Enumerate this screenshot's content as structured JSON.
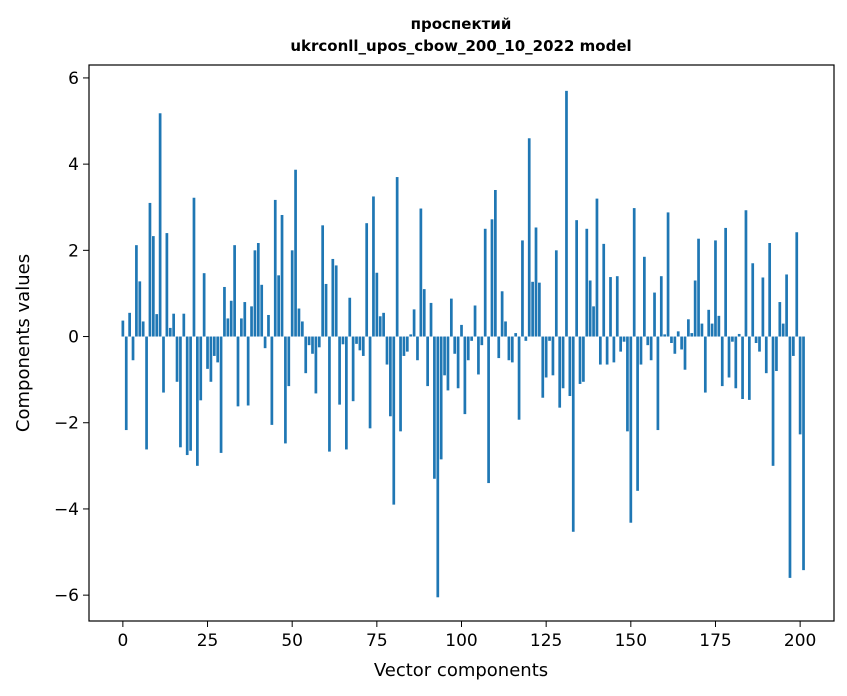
{
  "chart_data": {
    "type": "bar",
    "title": "проспектий",
    "subtitle": "ukrconll_upos_cbow_200_10_2022 model",
    "xlabel": "Vector components",
    "ylabel": "Components values",
    "xlim": [
      -10,
      210
    ],
    "ylim": [
      -6.6,
      6.3
    ],
    "xticks": [
      0,
      25,
      50,
      75,
      100,
      125,
      150,
      175,
      200
    ],
    "yticks": [
      -6,
      -4,
      -2,
      0,
      2,
      4,
      6
    ],
    "grid": false,
    "legend": "none",
    "bar_color": "#1f77b4",
    "values": [
      0.37,
      -2.17,
      0.55,
      -0.55,
      2.12,
      1.28,
      0.35,
      -2.62,
      3.1,
      2.33,
      0.52,
      5.18,
      -1.3,
      2.4,
      0.2,
      0.53,
      -1.05,
      -2.57,
      0.53,
      -2.75,
      -2.65,
      3.22,
      -3.0,
      -1.48,
      1.47,
      -0.75,
      -1.05,
      -0.45,
      -0.6,
      -2.7,
      1.15,
      0.42,
      0.83,
      2.12,
      -1.62,
      0.42,
      0.8,
      -1.6,
      0.7,
      2.0,
      2.17,
      1.2,
      -0.27,
      0.5,
      -2.05,
      3.17,
      1.42,
      2.82,
      -2.48,
      -1.15,
      2.0,
      3.87,
      0.65,
      0.35,
      -0.85,
      -0.2,
      -0.4,
      -1.32,
      -0.25,
      2.58,
      1.22,
      -2.67,
      1.8,
      1.65,
      -1.58,
      -0.18,
      -2.62,
      0.9,
      -1.5,
      -0.17,
      -0.32,
      -0.45,
      2.63,
      -2.13,
      3.25,
      1.48,
      0.47,
      0.55,
      -0.65,
      -1.85,
      -3.9,
      3.7,
      -2.2,
      -0.45,
      -0.35,
      0.05,
      0.63,
      -0.55,
      2.97,
      1.1,
      -1.15,
      0.78,
      -3.3,
      -6.05,
      -2.85,
      -0.9,
      -1.25,
      0.88,
      -0.4,
      -1.2,
      0.27,
      -1.8,
      -0.55,
      -0.1,
      0.72,
      -0.88,
      -0.2,
      2.5,
      -3.4,
      2.72,
      3.4,
      -0.5,
      1.05,
      0.35,
      -0.55,
      -0.6,
      0.08,
      -1.93,
      2.23,
      -0.1,
      4.6,
      1.27,
      2.53,
      1.25,
      -1.42,
      -0.95,
      -0.1,
      -0.9,
      2.0,
      -1.65,
      -1.2,
      5.7,
      -1.38,
      -4.53,
      2.7,
      -1.1,
      -1.05,
      2.5,
      1.3,
      0.7,
      3.2,
      -0.65,
      2.15,
      -0.65,
      1.38,
      -0.6,
      1.4,
      -0.35,
      -0.12,
      -2.2,
      -4.32,
      2.98,
      -3.58,
      -0.65,
      1.85,
      -0.2,
      -0.55,
      1.02,
      -2.17,
      1.4,
      0.05,
      2.88,
      -0.15,
      -0.4,
      0.12,
      -0.3,
      -0.77,
      0.4,
      0.08,
      1.3,
      2.27,
      0.3,
      -1.3,
      0.62,
      0.3,
      2.23,
      0.48,
      -1.15,
      2.52,
      -0.95,
      -0.12,
      -1.2,
      0.06,
      -1.45,
      2.93,
      -1.47,
      1.7,
      -0.15,
      -0.35,
      1.37,
      -0.85,
      2.17,
      -3.0,
      -0.8,
      0.8,
      0.3,
      1.44,
      -5.6,
      -0.45,
      2.42,
      -2.27,
      -5.42
    ]
  }
}
